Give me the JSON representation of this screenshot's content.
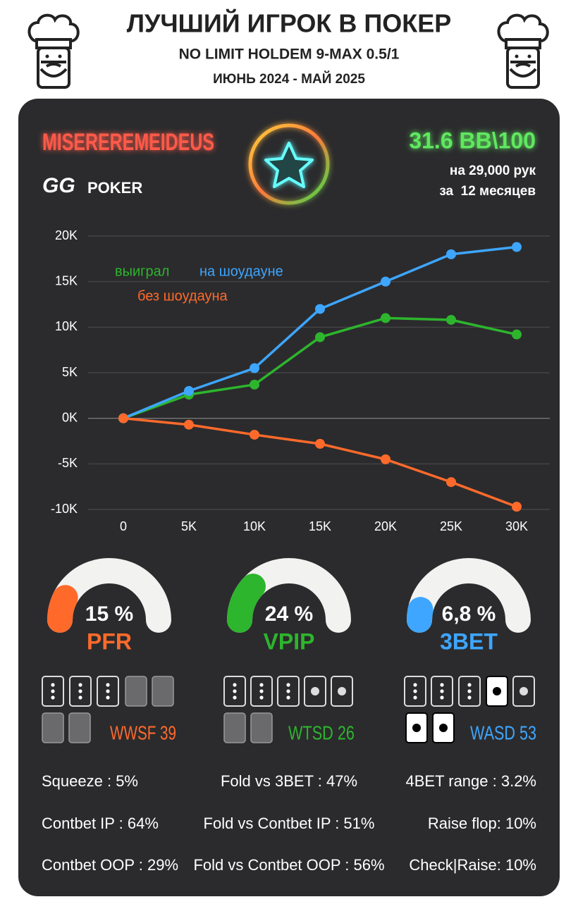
{
  "header": {
    "title": "ЛУЧШИЙ ИГРОК В ПОКЕР",
    "subtitle": "NO LIMIT HOLDEM 9-MAX 0.5/1",
    "period": "ИЮНЬ 2024 - МАЙ 2025"
  },
  "player": {
    "name": "MISEREREMEIDEUS",
    "logo_mark": "GG",
    "logo_text": "POKER",
    "winrate": "31.6 BB\\100",
    "hands": "на 29,000 рук",
    "months": "за  12 месяцев"
  },
  "chart_data": {
    "type": "line",
    "x": [
      0,
      5000,
      10000,
      15000,
      20000,
      25000,
      30000
    ],
    "xlim": [
      0,
      30000
    ],
    "xticks": [
      0,
      {
        "value": 5000,
        "label": "5K"
      },
      {
        "value": 10000,
        "label": "10K"
      },
      {
        "value": 15000,
        "label": "15K"
      },
      {
        "value": 20000,
        "label": "20K"
      },
      {
        "value": 25000,
        "label": "25K"
      },
      {
        "value": 30000,
        "label": "30K"
      }
    ],
    "ylim": [
      -10000,
      20000
    ],
    "yticks": [
      {
        "value": -10000,
        "label": "-10K"
      },
      {
        "value": -5000,
        "label": "-5K"
      },
      {
        "value": 0,
        "label": "0K"
      },
      {
        "value": 5000,
        "label": "5K"
      },
      {
        "value": 10000,
        "label": "10K"
      },
      {
        "value": 15000,
        "label": "15K"
      },
      {
        "value": 20000,
        "label": "20K"
      }
    ],
    "grid": true,
    "series": [
      {
        "name": "выиграл",
        "color": "#2db52d",
        "values": [
          0,
          2600,
          3700,
          8900,
          11000,
          10800,
          9200
        ]
      },
      {
        "name": "на шоудауне",
        "color": "#3ea6ff",
        "values": [
          0,
          3000,
          5500,
          12000,
          15000,
          18000,
          18800
        ]
      },
      {
        "name": "без шоудауна",
        "color": "#ff6a2b",
        "values": [
          0,
          -700,
          -1800,
          -2800,
          -4500,
          -7000,
          -9700
        ]
      }
    ]
  },
  "gauges": [
    {
      "name": "PFR",
      "value": 15,
      "value_label": "15 %",
      "color": "#ff6a2b"
    },
    {
      "name": "VPIP",
      "value": 24,
      "value_label": "24 %",
      "color": "#2db52d"
    },
    {
      "name": "3BET",
      "value": 6.8,
      "value_label": "6,8 %",
      "color": "#3ea6ff"
    }
  ],
  "card_stats": [
    {
      "text": "WWSF 39",
      "color": "#ff6a2b"
    },
    {
      "text": "WTSD 26",
      "color": "#2db52d"
    },
    {
      "text": "WASD 53",
      "color": "#3ea6ff"
    }
  ],
  "stats": [
    [
      "Squeeze : 5%",
      "Contbet IP : 64%",
      "Contbet OOP : 29%"
    ],
    [
      "Fold vs 3BET : 47%",
      "Fold vs Contbet IP : 51%",
      "Fold vs Contbet OOP : 56%"
    ],
    [
      "4BET range : 3.2%",
      "Raise flop: 10%",
      "Check|Raise: 10%"
    ]
  ]
}
